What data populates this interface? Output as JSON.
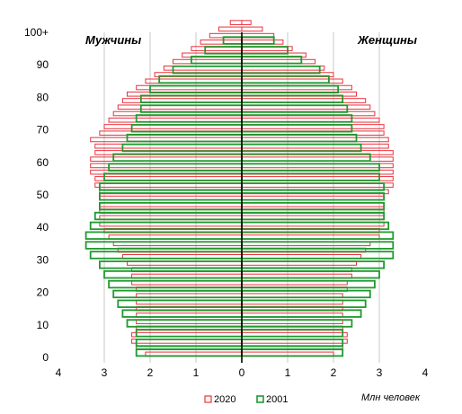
{
  "chart_data": {
    "type": "bar",
    "orientation": "horizontal-population-pyramid",
    "left_label": "Мужчины",
    "right_label": "Женщины",
    "x_unit_label": "Млн человек",
    "xlim": [
      -4,
      4
    ],
    "x_ticks": [
      "4",
      "3",
      "2",
      "1",
      "0",
      "1",
      "2",
      "3",
      "4"
    ],
    "y_ticks": [
      "0",
      "10",
      "20",
      "30",
      "40",
      "50",
      "60",
      "70",
      "80",
      "90",
      "100+"
    ],
    "grid": "vertical",
    "legend_position": "bottom",
    "series": [
      {
        "name": "2020",
        "color": "#e8323c",
        "male": [
          2.1,
          2.3,
          2.4,
          2.4,
          2.3,
          2.3,
          2.3,
          2.3,
          2.3,
          2.3,
          2.3,
          2.4,
          2.4,
          2.4,
          2.5,
          2.6,
          2.7,
          2.8,
          2.9,
          3.0,
          3.1,
          3.1,
          3.1,
          3.1,
          3.1,
          3.1,
          3.2,
          3.2,
          3.3,
          3.3,
          3.3,
          3.2,
          3.2,
          3.3,
          3.1,
          3.0,
          2.9,
          2.8,
          2.7,
          2.6,
          2.5,
          2.3,
          2.1,
          1.9,
          1.7,
          1.5,
          1.3,
          1.1,
          0.9,
          0.7,
          0.5,
          0.25
        ],
        "female": [
          2.0,
          2.2,
          2.3,
          2.3,
          2.2,
          2.2,
          2.2,
          2.2,
          2.2,
          2.2,
          2.3,
          2.3,
          2.4,
          2.4,
          2.5,
          2.6,
          2.7,
          2.8,
          3.0,
          3.0,
          3.1,
          3.1,
          3.1,
          3.1,
          3.1,
          3.2,
          3.3,
          3.3,
          3.3,
          3.3,
          3.3,
          3.3,
          3.2,
          3.2,
          3.1,
          3.1,
          3.0,
          2.9,
          2.8,
          2.7,
          2.5,
          2.4,
          2.2,
          2.0,
          1.8,
          1.6,
          1.4,
          1.1,
          0.9,
          0.7,
          0.45,
          0.2
        ]
      },
      {
        "name": "2001",
        "color": "#1f9a2f",
        "male": [
          2.3,
          2.3,
          2.3,
          2.5,
          2.6,
          2.7,
          2.8,
          2.9,
          3.0,
          3.1,
          3.3,
          3.4,
          3.4,
          3.3,
          3.2,
          3.1,
          3.1,
          3.1,
          3.0,
          2.9,
          2.8,
          2.6,
          2.5,
          2.4,
          2.3,
          2.2,
          2.2,
          2.0,
          1.8,
          1.5,
          1.1,
          0.8,
          0.4
        ],
        "female": [
          2.2,
          2.2,
          2.2,
          2.4,
          2.6,
          2.7,
          2.8,
          2.9,
          3.0,
          3.1,
          3.3,
          3.3,
          3.3,
          3.2,
          3.1,
          3.1,
          3.1,
          3.1,
          3.0,
          3.0,
          2.8,
          2.6,
          2.5,
          2.4,
          2.4,
          2.3,
          2.2,
          2.1,
          1.9,
          1.7,
          1.3,
          1.0,
          0.7
        ]
      }
    ]
  }
}
